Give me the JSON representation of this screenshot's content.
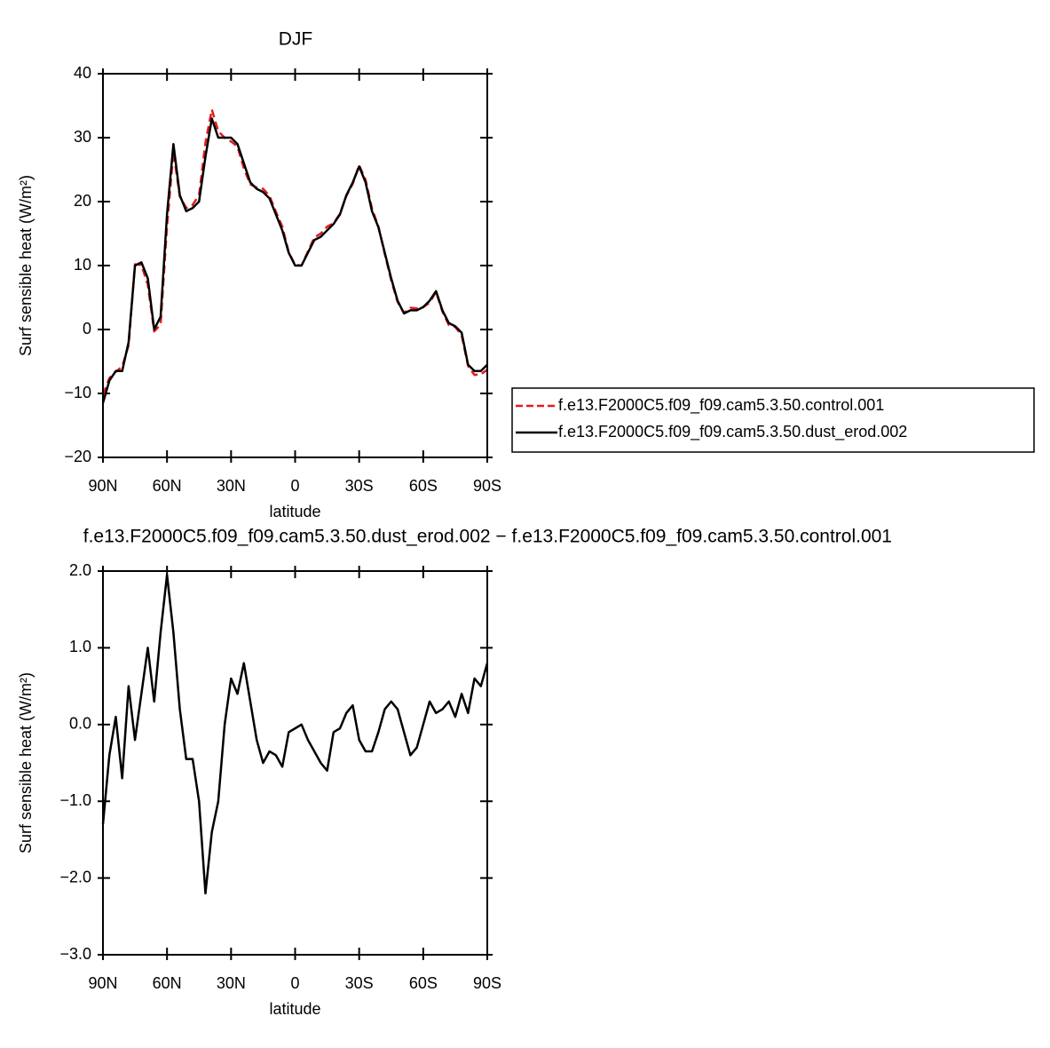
{
  "chart_data": [
    {
      "type": "line",
      "title": "DJF",
      "xlabel": "latitude",
      "ylabel": "Surf sensible heat (W/m²)",
      "x": [
        90,
        87,
        84,
        81,
        78,
        75,
        72,
        69,
        66,
        63,
        60,
        57,
        54,
        51,
        48,
        45,
        42,
        39,
        36,
        33,
        30,
        27,
        24,
        21,
        18,
        15,
        12,
        9,
        6,
        3,
        0,
        -3,
        -6,
        -9,
        -12,
        -15,
        -18,
        -21,
        -24,
        -27,
        -30,
        -33,
        -36,
        -39,
        -42,
        -45,
        -48,
        -51,
        -54,
        -57,
        -60,
        -63,
        -66,
        -69,
        -72,
        -75,
        -78,
        -81,
        -84,
        -87,
        -90
      ],
      "series": [
        {
          "name": "f.e13.F2000C5.f09_f09.cam5.3.50.control.001",
          "color": "#e41a1c",
          "dash": true,
          "values": [
            -10.2,
            -7.6,
            -6.6,
            -5.8,
            -2.5,
            10.2,
            10.1,
            7.0,
            -0.3,
            0.8,
            16.1,
            27.8,
            20.8,
            19.0,
            19.5,
            21.0,
            29.2,
            34.4,
            31.0,
            30.0,
            29.4,
            28.6,
            25.2,
            22.7,
            22.2,
            22.0,
            20.9,
            18.4,
            16.1,
            12.1,
            10.1,
            10.0,
            12.2,
            14.4,
            15.0,
            16.1,
            16.6,
            18.1,
            20.9,
            22.8,
            25.7,
            23.4,
            18.9,
            16.1,
            11.8,
            7.7,
            4.3,
            2.6,
            3.4,
            3.3,
            3.5,
            4.2,
            5.9,
            2.8,
            0.7,
            0.4,
            -0.9,
            -5.7,
            -7.1,
            -7.0,
            -6.3
          ]
        },
        {
          "name": "f.e13.F2000C5.f09_f09.cam5.3.50.dust_erod.002",
          "color": "#000000",
          "dash": false,
          "values": [
            -11.5,
            -8,
            -6.5,
            -6.5,
            -2,
            10,
            10.5,
            8,
            0,
            2,
            18,
            29,
            21,
            18.5,
            19,
            20,
            27,
            33,
            30,
            30,
            30,
            29,
            26,
            23,
            22,
            21.5,
            20.5,
            18,
            15.5,
            12,
            10,
            10,
            12,
            14,
            14.5,
            15.5,
            16.5,
            18,
            21,
            23,
            25.5,
            23,
            18.5,
            16,
            12,
            8,
            4.5,
            2.5,
            3,
            3,
            3.5,
            4.5,
            6,
            3,
            1,
            0.5,
            -0.5,
            -5.5,
            -6.5,
            -6.5,
            -5.5
          ]
        }
      ],
      "xlim": [
        90,
        -90
      ],
      "xticks": [
        {
          "value": 90,
          "label": "90N"
        },
        {
          "value": 60,
          "label": "60N"
        },
        {
          "value": 30,
          "label": "30N"
        },
        0,
        {
          "value": -30,
          "label": "30S"
        },
        {
          "value": -60,
          "label": "60S"
        },
        {
          "value": -90,
          "label": "90S"
        }
      ],
      "ylim": [
        -20,
        40
      ],
      "yticks": [
        {
          "value": -20,
          "label": "−20"
        },
        {
          "value": -10,
          "label": "−10"
        },
        0,
        10,
        20,
        30,
        40
      ],
      "legend": "right"
    },
    {
      "type": "line",
      "title": "f.e13.F2000C5.f09_f09.cam5.3.50.dust_erod.002 − f.e13.F2000C5.f09_f09.cam5.3.50.control.001",
      "xlabel": "latitude",
      "ylabel": "Surf sensible heat (W/m²)",
      "x": [
        90,
        87,
        84,
        81,
        78,
        75,
        72,
        69,
        66,
        63,
        60,
        57,
        54,
        51,
        48,
        45,
        42,
        39,
        36,
        33,
        30,
        27,
        24,
        21,
        18,
        15,
        12,
        9,
        6,
        3,
        0,
        -3,
        -6,
        -9,
        -12,
        -15,
        -18,
        -21,
        -24,
        -27,
        -30,
        -33,
        -36,
        -39,
        -42,
        -45,
        -48,
        -51,
        -54,
        -57,
        -60,
        -63,
        -66,
        -69,
        -72,
        -75,
        -78,
        -81,
        -84,
        -87,
        -90
      ],
      "values": [
        -1.3,
        -0.4,
        0.1,
        -0.7,
        0.5,
        -0.2,
        0.4,
        1.0,
        0.3,
        1.2,
        1.95,
        1.2,
        0.2,
        -0.45,
        -0.45,
        -1.0,
        -2.2,
        -1.4,
        -1.0,
        0.0,
        0.6,
        0.4,
        0.8,
        0.3,
        -0.2,
        -0.5,
        -0.35,
        -0.4,
        -0.55,
        -0.1,
        -0.05,
        0.0,
        -0.2,
        -0.35,
        -0.5,
        -0.6,
        -0.1,
        -0.05,
        0.15,
        0.25,
        -0.2,
        -0.35,
        -0.35,
        -0.1,
        0.2,
        0.3,
        0.2,
        -0.1,
        -0.4,
        -0.3,
        0.0,
        0.3,
        0.15,
        0.2,
        0.3,
        0.1,
        0.4,
        0.15,
        0.6,
        0.5,
        0.8
      ],
      "color": "#000000",
      "xlim": [
        90,
        -90
      ],
      "xticks": [
        {
          "value": 90,
          "label": "90N"
        },
        {
          "value": 60,
          "label": "60N"
        },
        {
          "value": 30,
          "label": "30N"
        },
        0,
        {
          "value": -30,
          "label": "30S"
        },
        {
          "value": -60,
          "label": "60S"
        },
        {
          "value": -90,
          "label": "90S"
        }
      ],
      "ylim": [
        -3,
        2
      ],
      "yticks": [
        {
          "value": -3,
          "label": "−3.0"
        },
        {
          "value": -2,
          "label": "−2.0"
        },
        {
          "value": -1,
          "label": "−1.0"
        },
        {
          "value": 0,
          "label": "0.0"
        },
        {
          "value": 1,
          "label": "1.0"
        },
        {
          "value": 2,
          "label": "2.0"
        }
      ]
    }
  ]
}
